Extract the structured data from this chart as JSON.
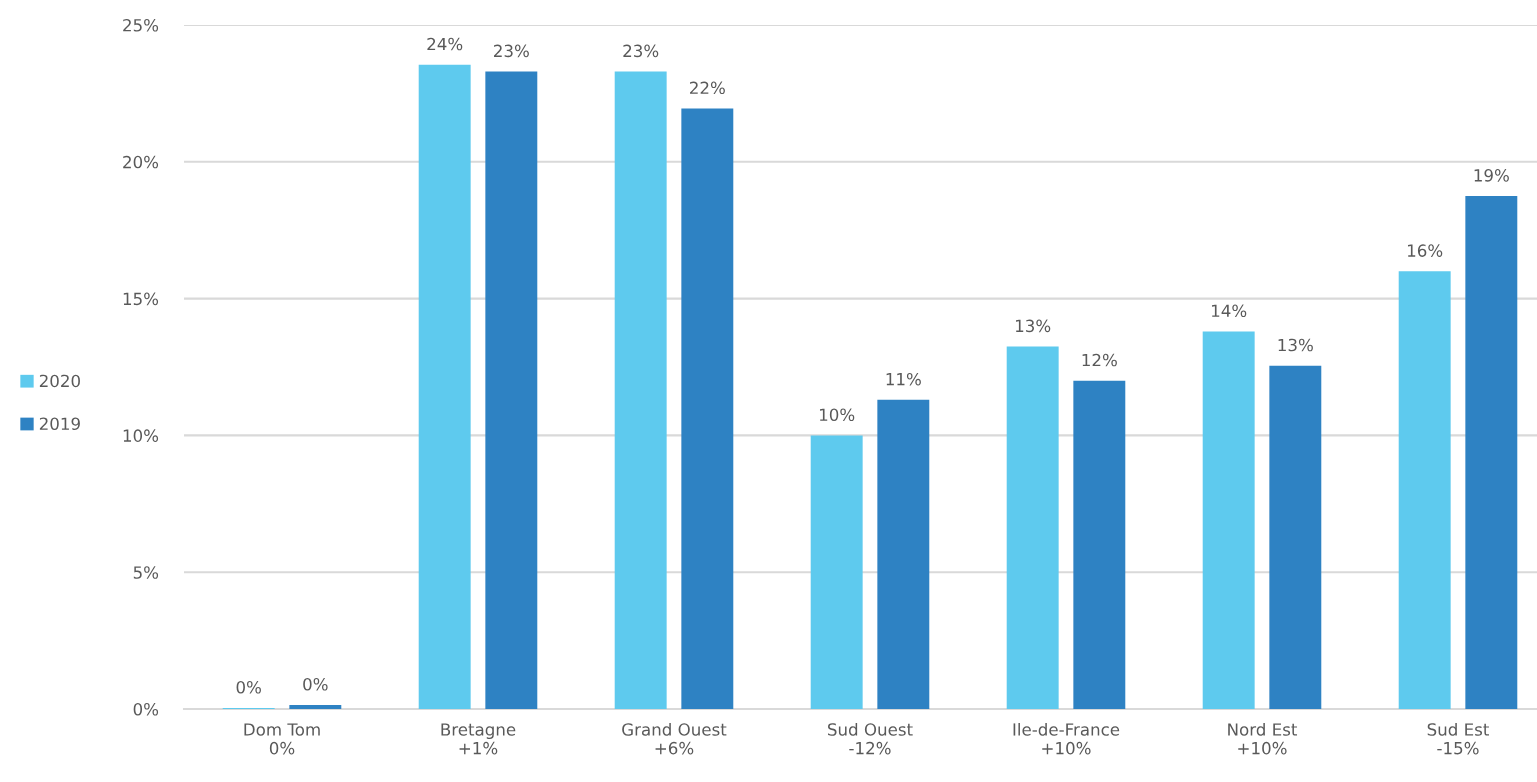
{
  "chart_data": {
    "type": "bar",
    "categories": [
      "Dom Tom\n0%",
      "Bretagne\n+1%",
      "Grand Ouest\n+6%",
      "Sud Ouest\n-12%",
      "Ile-de-France\n+10%",
      "Nord Est\n+10%",
      "Sud Est\n-15%"
    ],
    "series": [
      {
        "name": "2020",
        "color": "#5ecaee",
        "values": [
          0.04,
          23.55,
          23.3,
          10.0,
          13.25,
          13.8,
          16.0
        ],
        "value_labels": [
          "0%",
          "24%",
          "23%",
          "10%",
          "13%",
          "14%",
          "16%"
        ]
      },
      {
        "name": "2019",
        "color": "#2e82c3",
        "values": [
          0.15,
          23.3,
          21.95,
          11.3,
          12.0,
          12.55,
          18.75
        ],
        "value_labels": [
          "0%",
          "23%",
          "22%",
          "11%",
          "12%",
          "13%",
          "19%"
        ]
      }
    ],
    "ylim": [
      0,
      25
    ],
    "yticks": [
      {
        "value": 0,
        "label": "0%"
      },
      {
        "value": 5,
        "label": "5%"
      },
      {
        "value": 10,
        "label": "10%"
      },
      {
        "value": 15,
        "label": "15%"
      },
      {
        "value": 20,
        "label": "20%"
      },
      {
        "value": 25,
        "label": "25%"
      }
    ],
    "grid": "y",
    "legend": "left"
  }
}
